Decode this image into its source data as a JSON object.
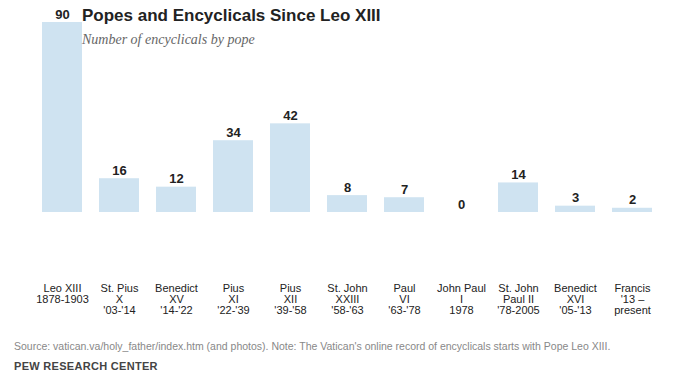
{
  "chart_data": {
    "type": "bar",
    "title": "Popes and Encyclicals Since Leo XIII",
    "subtitle": "Number of encyclicals by pope",
    "categories": [
      "Leo XIII\n1878-1903",
      "St. Pius\nX\n'03-'14",
      "Benedict\nXV\n'14-'22",
      "Pius\nXI\n'22-'39",
      "Pius\nXII\n'39-'58",
      "St. John\nXXIII\n'58-'63",
      "Paul\nVI\n'63-'78",
      "John Paul\nI\n1978",
      "St. John\nPaul II\n'78-2005",
      "Benedict\nXVI\n'05-'13",
      "Francis\n'13 –\npresent"
    ],
    "values": [
      90,
      16,
      12,
      34,
      42,
      8,
      7,
      0,
      14,
      3,
      2
    ],
    "color": "#cfe3f1",
    "ylim": [
      0,
      90
    ],
    "grid": false,
    "data_labels": true,
    "tick_labels": "x",
    "source": "Source: vatican.va/holy_father/index.htm (and photos). Note: The Vatican's online record of encyclicals starts with Pope Leo XIII.",
    "credit": "PEW RESEARCH CENTER"
  }
}
